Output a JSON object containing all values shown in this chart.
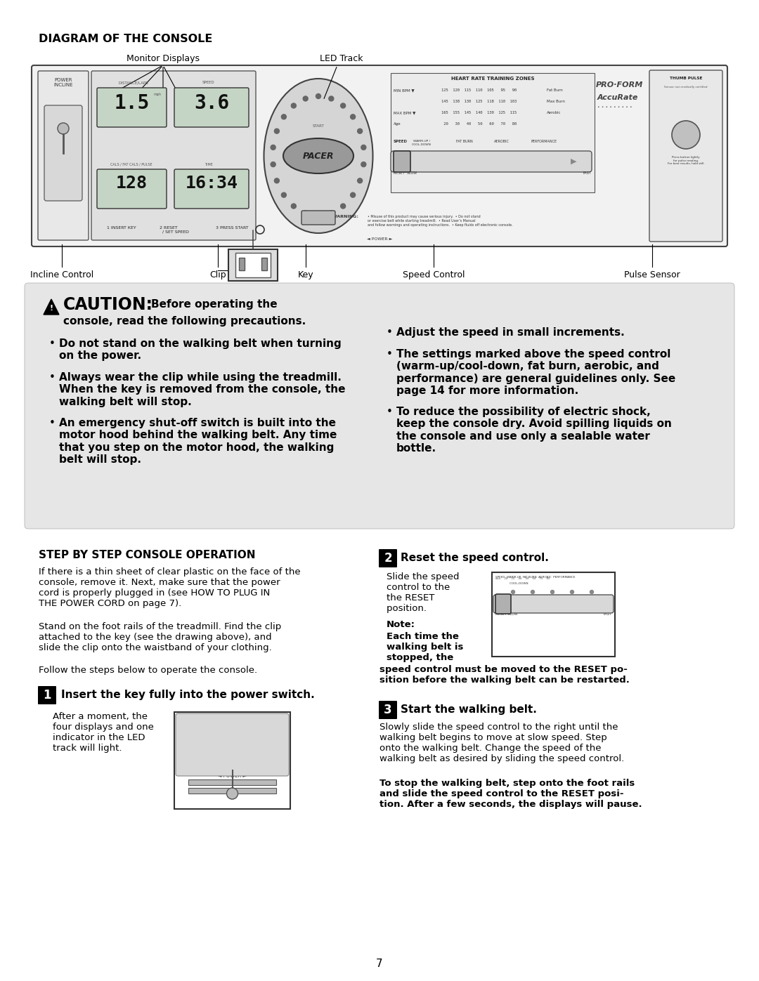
{
  "page_title": "DIAGRAM OF THE CONSOLE",
  "bg_color": "#ffffff",
  "gray_bg": "#e6e6e6",
  "label_monitor_displays": "Monitor Displays",
  "label_led_track": "LED Track",
  "label_incline_control": "Incline Control",
  "label_clip": "Clip",
  "label_key": "Key",
  "label_speed_control": "Speed Control",
  "label_pulse_sensor": "Pulse Sensor",
  "caution_title": "CAUTION:",
  "caution_intro_bold": "Before operating the",
  "caution_intro2_bold": "console, read the following precautions.",
  "caution_bullets_left": [
    "Do not stand on the walking belt when turning\non the power.",
    "Always wear the clip while using the treadmill.\nWhen the key is removed from the console, the\nwalking belt will stop.",
    "An emergency shut-off switch is built into the\nmotor hood behind the walking belt. Any time\nthat you step on the motor hood, the walking\nbelt will stop."
  ],
  "caution_bullets_right": [
    "Adjust the speed in small increments.",
    "The settings marked above the speed control\n(warm-up/cool-down, fat burn, aerobic, and\nperformance) are general guidelines only. See\npage 14 for more information.",
    "To reduce the possibility of electric shock,\nkeep the console dry. Avoid spilling liquids on\nthe console and use only a sealable water\nbottle."
  ],
  "step_section_title": "STEP BY STEP CONSOLE OPERATION",
  "intro_para1": "If there is a thin sheet of clear plastic on the face of the\nconsole, remove it. Next, make sure that the power\ncord is properly plugged in (see HOW TO PLUG IN\nTHE POWER CORD on page 7).",
  "intro_para2": "Stand on the foot rails of the treadmill. Find the clip\nattached to the key (see the drawing above), and\nslide the clip onto the waistband of your clothing.",
  "intro_para3": "Follow the steps below to operate the console.",
  "step1_title": "Insert the key fully into the power switch.",
  "step1_text": "After a moment, the\nfour displays and one\nindicator in the LED\ntrack will light.",
  "step2_title": "Reset the speed control.",
  "step2_text1": "Slide the speed\ncontrol to the\nthe RESET\nposition. ",
  "step2_note_bold": "Note:\nEach time the\nwalking belt is\nstopped, the",
  "step2_text2_bold": "speed control must be moved to the RESET po-\nsition before the walking belt can be restarted.",
  "step3_title": "Start the walking belt.",
  "step3_text1": "Slowly slide the speed control to the right until the\nwalking belt begins to move at slow speed. Step\nonto the walking belt. Change the speed of the\nwalking belt as desired by sliding the speed control.",
  "step3_text2_bold": "To stop the walking belt, step onto the foot rails\nand slide the speed control to the RESET posi-\ntion. After a few seconds, the displays will pause.",
  "page_number": "7"
}
